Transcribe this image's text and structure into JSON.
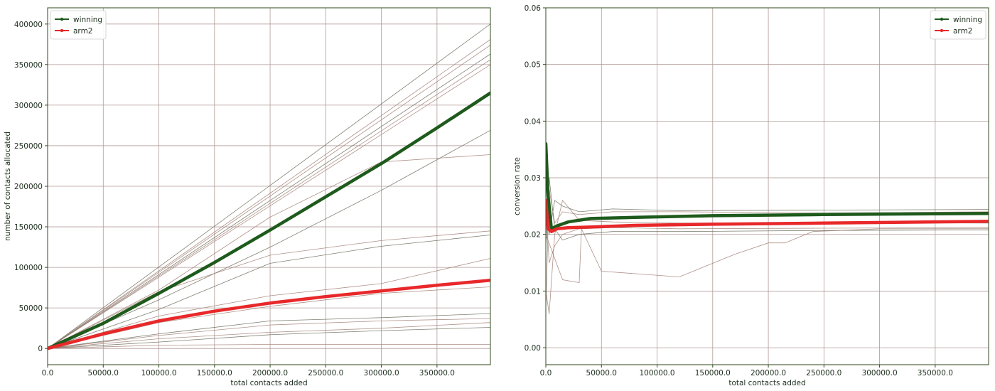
{
  "colors": {
    "winning": "#1e5a1c",
    "arm2": "#e8282a",
    "background_lines": "#a07f74",
    "grid": "#b09a98",
    "axes": "#2f4a1c",
    "text": "#203020"
  },
  "chart_data": [
    {
      "type": "line",
      "title": "",
      "xlabel": "total contacts added",
      "ylabel": "number of contacts allocated",
      "xlim": [
        0,
        398000
      ],
      "ylim": [
        -20000,
        420000
      ],
      "xticks": [
        0,
        50000,
        100000,
        150000,
        200000,
        250000,
        300000,
        350000
      ],
      "xtick_labels": [
        "0.0",
        "50000.0",
        "100000.0",
        "150000.0",
        "200000.0",
        "250000.0",
        "300000.0",
        "350000.0"
      ],
      "yticks": [
        0,
        50000,
        100000,
        150000,
        200000,
        250000,
        300000,
        350000,
        400000
      ],
      "ytick_labels": [
        "0",
        "50000",
        "100000",
        "150000",
        "200000",
        "250000",
        "300000",
        "350000",
        "400000"
      ],
      "grid": true,
      "legend": "top-left",
      "series": [
        {
          "name": "winning",
          "x": [
            0,
            50000,
            100000,
            150000,
            200000,
            250000,
            300000,
            350000,
            398000
          ],
          "y": [
            0,
            31000,
            68000,
            106000,
            146000,
            187000,
            228000,
            272000,
            315000
          ]
        },
        {
          "name": "arm2",
          "x": [
            0,
            50000,
            100000,
            150000,
            200000,
            250000,
            300000,
            350000,
            398000
          ],
          "y": [
            0,
            18000,
            34000,
            46000,
            56000,
            64000,
            71000,
            78000,
            84000
          ]
        }
      ],
      "background_runs": [
        {
          "x": [
            0,
            398000
          ],
          "y": [
            0,
            400000
          ]
        },
        {
          "x": [
            0,
            398000
          ],
          "y": [
            0,
            381000
          ]
        },
        {
          "x": [
            0,
            398000
          ],
          "y": [
            0,
            374000
          ]
        },
        {
          "x": [
            0,
            398000
          ],
          "y": [
            0,
            363000
          ]
        },
        {
          "x": [
            0,
            398000
          ],
          "y": [
            0,
            356000
          ]
        },
        {
          "x": [
            0,
            398000
          ],
          "y": [
            0,
            350000
          ]
        },
        {
          "x": [
            0,
            100000,
            200000,
            300000,
            398000
          ],
          "y": [
            0,
            60000,
            125000,
            195000,
            269000
          ]
        },
        {
          "x": [
            0,
            100000,
            200000,
            300000,
            398000
          ],
          "y": [
            0,
            72000,
            162000,
            230000,
            239000
          ]
        },
        {
          "x": [
            0,
            100000,
            200000,
            300000,
            398000
          ],
          "y": [
            0,
            70000,
            115000,
            133000,
            145000
          ]
        },
        {
          "x": [
            0,
            100000,
            200000,
            300000,
            398000
          ],
          "y": [
            0,
            48000,
            105000,
            126000,
            140000
          ]
        },
        {
          "x": [
            0,
            100000,
            200000,
            300000,
            398000
          ],
          "y": [
            0,
            40000,
            65000,
            80000,
            111000
          ]
        },
        {
          "x": [
            0,
            100000,
            200000,
            300000,
            398000
          ],
          "y": [
            0,
            32000,
            52000,
            68000,
            76000
          ]
        },
        {
          "x": [
            0,
            100000,
            200000,
            300000,
            398000
          ],
          "y": [
            0,
            18000,
            34000,
            38000,
            43000
          ]
        },
        {
          "x": [
            0,
            100000,
            200000,
            300000,
            398000
          ],
          "y": [
            0,
            16000,
            29000,
            34000,
            37000
          ]
        },
        {
          "x": [
            0,
            100000,
            200000,
            300000,
            398000
          ],
          "y": [
            0,
            12000,
            20000,
            25000,
            32000
          ]
        },
        {
          "x": [
            0,
            100000,
            200000,
            300000,
            398000
          ],
          "y": [
            0,
            8000,
            17000,
            22000,
            26000
          ]
        },
        {
          "x": [
            0,
            100000,
            200000,
            300000,
            398000
          ],
          "y": [
            0,
            4000,
            5000,
            5000,
            5000
          ]
        }
      ]
    },
    {
      "type": "line",
      "title": "",
      "xlabel": "total contacts added",
      "ylabel": "conversion rate",
      "xlim": [
        0,
        398000
      ],
      "ylim": [
        -0.003,
        0.06
      ],
      "xticks": [
        0,
        50000,
        100000,
        150000,
        200000,
        250000,
        300000,
        350000
      ],
      "xtick_labels": [
        "0.0",
        "50000.0",
        "100000.0",
        "150000.0",
        "200000.0",
        "250000.0",
        "300000.0",
        "350000.0"
      ],
      "yticks": [
        0,
        0.01,
        0.02,
        0.03,
        0.04,
        0.05,
        0.06
      ],
      "ytick_labels": [
        "0.00",
        "0.01",
        "0.02",
        "0.03",
        "0.04",
        "0.05",
        "0.06"
      ],
      "grid": true,
      "legend": "top-right",
      "series": [
        {
          "name": "winning",
          "x": [
            0,
            2000,
            5000,
            10000,
            20000,
            40000,
            80000,
            150000,
            250000,
            398000
          ],
          "y": [
            0.036,
            0.027,
            0.021,
            0.0215,
            0.0222,
            0.0228,
            0.023,
            0.0233,
            0.0235,
            0.0237
          ]
        },
        {
          "name": "arm2",
          "x": [
            0,
            2000,
            5000,
            10000,
            20000,
            40000,
            80000,
            150000,
            250000,
            398000
          ],
          "y": [
            0.026,
            0.021,
            0.0205,
            0.021,
            0.0212,
            0.0213,
            0.0216,
            0.0218,
            0.022,
            0.0223
          ]
        }
      ],
      "background_runs": [
        {
          "x": [
            0,
            3000,
            8000,
            15000,
            30000,
            60000,
            120000,
            250000,
            398000
          ],
          "y": [
            0.03,
            0.02,
            0.026,
            0.025,
            0.024,
            0.0245,
            0.0242,
            0.0243,
            0.0244
          ]
        },
        {
          "x": [
            0,
            3000,
            8000,
            15000,
            30000,
            60000,
            120000,
            250000,
            398000
          ],
          "y": [
            0.007,
            0.028,
            0.022,
            0.024,
            0.0235,
            0.024,
            0.024,
            0.0238,
            0.024
          ]
        },
        {
          "x": [
            0,
            3000,
            8000,
            15000,
            30000,
            60000,
            120000,
            250000,
            398000
          ],
          "y": [
            0.01,
            0.006,
            0.02,
            0.026,
            0.0225,
            0.0222,
            0.022,
            0.0221,
            0.022
          ]
        },
        {
          "x": [
            0,
            3000,
            8000,
            15000,
            30000,
            60000,
            120000,
            250000,
            398000
          ],
          "y": [
            0.018,
            0.03,
            0.021,
            0.019,
            0.02,
            0.0205,
            0.0205,
            0.0207,
            0.0208
          ]
        },
        {
          "x": [
            0,
            3000,
            8000,
            15000,
            30000,
            60000,
            120000,
            250000,
            398000
          ],
          "y": [
            0.025,
            0.015,
            0.018,
            0.02,
            0.021,
            0.0212,
            0.021,
            0.0211,
            0.0212
          ]
        },
        {
          "x": [
            0,
            15000,
            30000,
            32000,
            50000,
            120000,
            170000,
            200000,
            215000,
            240000,
            300000,
            398000
          ],
          "y": [
            0.02,
            0.012,
            0.0115,
            0.021,
            0.0135,
            0.0125,
            0.0165,
            0.0185,
            0.0185,
            0.0205,
            0.021,
            0.021
          ]
        }
      ]
    }
  ]
}
